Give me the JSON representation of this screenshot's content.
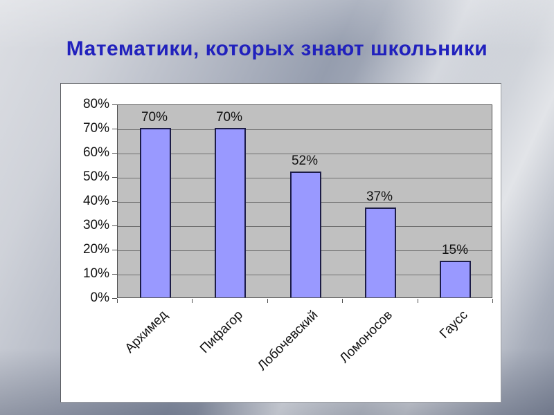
{
  "slide": {
    "title": "Математики, которых знают школьники",
    "title_color": "#2121bd"
  },
  "chart_data": {
    "type": "bar",
    "title": "Математики, которых знают школьники",
    "categories": [
      "Архимед",
      "Пифагор",
      "Лобочевский",
      "Ломоносов",
      "Гаусс"
    ],
    "values": [
      70,
      70,
      52,
      37,
      15
    ],
    "data_labels": [
      "70%",
      "70%",
      "52%",
      "37%",
      "15%"
    ],
    "xlabel": "",
    "ylabel": "",
    "ylim": [
      0,
      80
    ],
    "y_tick_step": 10,
    "y_ticks": [
      "80%",
      "70%",
      "60%",
      "50%",
      "40%",
      "30%",
      "20%",
      "10%",
      "0%"
    ],
    "grid": true,
    "legend": "none",
    "colors": {
      "bar_fill": "#9999ff",
      "bar_border": "#1c1c46",
      "plot_background": "#c0c0c0",
      "gridline": "#6e6e6e",
      "chart_background": "#ffffff",
      "label_text": "#111111"
    }
  }
}
